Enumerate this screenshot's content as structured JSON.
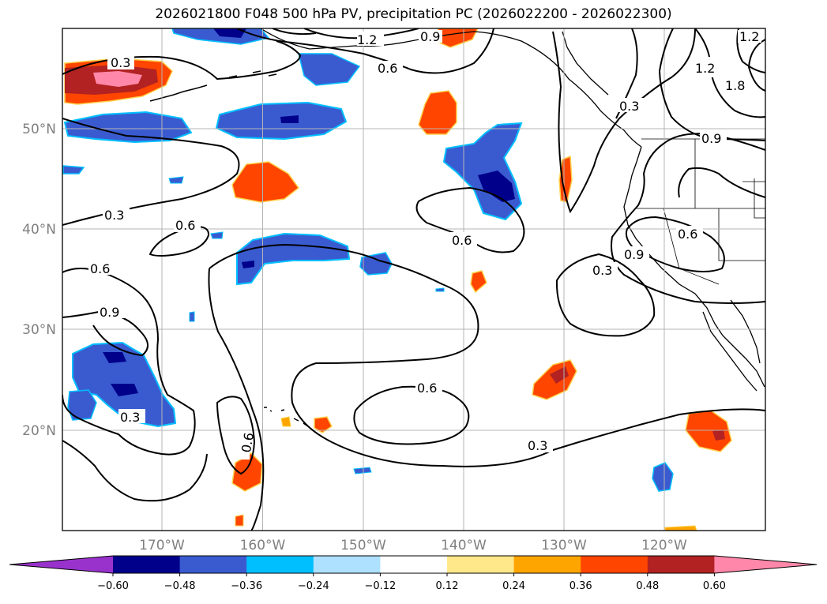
{
  "title": "2026021800 F048 500 hPa PV, precipitation PC (2026022200 - 2026022300)",
  "map": {
    "extent": {
      "lon_min": -180,
      "lon_max": -110,
      "lat_min": 10,
      "lat_max": 60
    },
    "lon_ticks": [
      {
        "lon": -170,
        "label": "170°W"
      },
      {
        "lon": -160,
        "label": "160°W"
      },
      {
        "lon": -150,
        "label": "150°W"
      },
      {
        "lon": -140,
        "label": "140°W"
      },
      {
        "lon": -130,
        "label": "130°W"
      },
      {
        "lon": -120,
        "label": "120°W"
      }
    ],
    "lat_ticks": [
      {
        "lat": 50,
        "label": "50°N"
      },
      {
        "lat": 40,
        "label": "40°N"
      },
      {
        "lat": 30,
        "label": "30°N"
      },
      {
        "lat": 20,
        "label": "20°N"
      }
    ],
    "gridlines": true,
    "contour_labels": [
      "0.3",
      "0.6",
      "0.9",
      "1.2",
      "1.8"
    ]
  },
  "colorbar": {
    "ticks": [
      "−0.60",
      "−0.48",
      "−0.36",
      "−0.24",
      "−0.12",
      "0.12",
      "0.24",
      "0.36",
      "0.48",
      "0.60"
    ],
    "colors": [
      "#9932cc",
      "#00008b",
      "#3a5bd0",
      "#00bfff",
      "#aee0ff",
      "#ffffff",
      "#ffe88a",
      "#ffa500",
      "#ff4500",
      "#b22222",
      "#ff88aa"
    ]
  }
}
